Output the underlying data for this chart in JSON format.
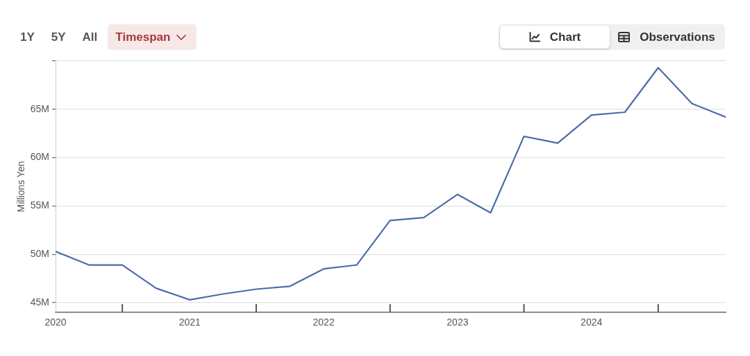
{
  "chart_data": {
    "type": "line",
    "annotations": [
      "1Y",
      "5Y",
      "All",
      "Timespan",
      "Chart",
      "Observations"
    ],
    "ylabel": "Millions Yen",
    "x": [
      "2020-01",
      "2020-04",
      "2020-07",
      "2020-10",
      "2021-01",
      "2021-04",
      "2021-07",
      "2021-10",
      "2022-01",
      "2022-04",
      "2022-07",
      "2022-10",
      "2023-01",
      "2023-04",
      "2023-07",
      "2023-10",
      "2024-01",
      "2024-04",
      "2024-07",
      "2024-10",
      "2025-01"
    ],
    "values": [
      50.3,
      48.9,
      48.9,
      46.5,
      45.3,
      45.9,
      46.4,
      46.7,
      48.5,
      48.9,
      53.5,
      53.8,
      56.2,
      54.3,
      62.2,
      61.5,
      64.4,
      64.7,
      69.3,
      65.6,
      64.2
    ],
    "color": "#4a6ca8",
    "xlim": [
      "2020-01",
      "2025-01"
    ],
    "xticks": [
      "2020",
      {
        "value": "2020-07",
        "label": null
      },
      "2021",
      {
        "value": "2021-07",
        "label": null
      },
      "2022",
      {
        "value": "2022-07",
        "label": null
      },
      "2023",
      {
        "value": "2023-07",
        "label": null
      },
      "2024",
      {
        "value": "2024-07",
        "label": null
      }
    ],
    "ylim": [
      44,
      70
    ],
    "yticks": [
      {
        "value": 45,
        "label": "45M"
      },
      {
        "value": 50,
        "label": "50M"
      },
      {
        "value": 55,
        "label": "55M"
      },
      {
        "value": 60,
        "label": "60M"
      },
      {
        "value": 65,
        "label": "65M"
      },
      {
        "value": 70,
        "label": null
      }
    ],
    "grid": "y"
  }
}
